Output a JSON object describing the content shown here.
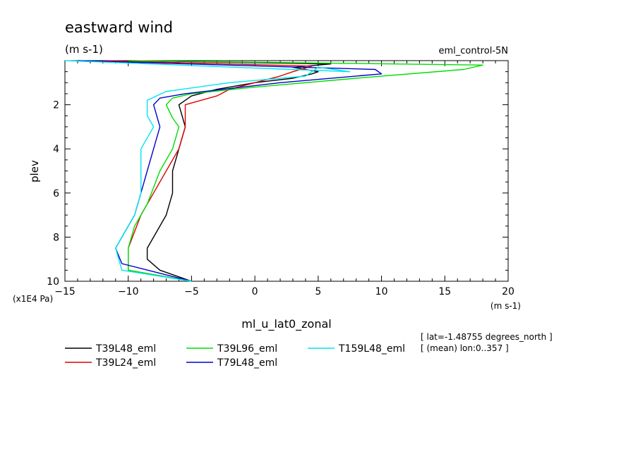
{
  "title": "eastward wind",
  "units_top": "(m s-1)",
  "dataset": "eml_control-5N",
  "ylabel": "plev",
  "yunits": "(x1E4 Pa)",
  "xunits": "(m s-1)",
  "xlabel": "ml_u_lat0_zonal",
  "info_lines": [
    "[ lat=-1.48755 degrees_north ]",
    "[ (mean) lon:0..357 ]"
  ],
  "chart_data": {
    "type": "line",
    "title": "eastward wind",
    "xlabel": "ml_u_lat0_zonal",
    "ylabel": "plev",
    "xlim": [
      -15,
      20
    ],
    "ylim": [
      0,
      10
    ],
    "y_inverted": true,
    "xticks": [
      -15,
      -10,
      -5,
      0,
      5,
      10,
      15,
      20
    ],
    "yticks": [
      2,
      4,
      6,
      8,
      10
    ],
    "legend_placement": "bottom",
    "series": [
      {
        "name": "T39L48_eml",
        "color": "#000000",
        "points": [
          [
            -10,
            0.0
          ],
          [
            6,
            0.15
          ],
          [
            3,
            0.3
          ],
          [
            5,
            0.5
          ],
          [
            4.5,
            0.6
          ],
          [
            3,
            0.8
          ],
          [
            0,
            1.0
          ],
          [
            -3,
            1.3
          ],
          [
            -5,
            1.6
          ],
          [
            -5.5,
            1.8
          ],
          [
            -6,
            2.0
          ],
          [
            -5.5,
            3.0
          ],
          [
            -6,
            4.0
          ],
          [
            -6.5,
            5.0
          ],
          [
            -6.5,
            6.0
          ],
          [
            -7,
            7.0
          ],
          [
            -8.5,
            8.5
          ],
          [
            -8.5,
            9.0
          ],
          [
            -7.5,
            9.5
          ],
          [
            -5,
            10.0
          ]
        ]
      },
      {
        "name": "T39L24_eml",
        "color": "#e00000",
        "points": [
          [
            -12,
            0.0
          ],
          [
            4.5,
            0.25
          ],
          [
            3,
            0.5
          ],
          [
            2,
            0.7
          ],
          [
            0,
            1.0
          ],
          [
            -2,
            1.3
          ],
          [
            -3,
            1.6
          ],
          [
            -5.5,
            2.0
          ],
          [
            -5.5,
            3.0
          ],
          [
            -6,
            4.0
          ],
          [
            -7,
            5.0
          ],
          [
            -8,
            6.0
          ],
          [
            -9,
            7.0
          ],
          [
            -10,
            8.5
          ],
          [
            -10,
            9.5
          ],
          [
            -5,
            10.0
          ]
        ]
      },
      {
        "name": "T39L96_eml",
        "color": "#00dd00",
        "points": [
          [
            -10,
            0.0
          ],
          [
            18,
            0.2
          ],
          [
            16.5,
            0.4
          ],
          [
            8,
            0.8
          ],
          [
            0,
            1.2
          ],
          [
            -5,
            1.5
          ],
          [
            -6.5,
            1.7
          ],
          [
            -7,
            2.0
          ],
          [
            -6.5,
            2.6
          ],
          [
            -6,
            3.0
          ],
          [
            -6.5,
            4.0
          ],
          [
            -7.5,
            5.0
          ],
          [
            -8.5,
            6.5
          ],
          [
            -9.5,
            7.5
          ],
          [
            -10,
            8.5
          ],
          [
            -10,
            9.5
          ],
          [
            -5,
            10.0
          ]
        ]
      },
      {
        "name": "T79L48_eml",
        "color": "#0000cc",
        "points": [
          [
            -14,
            0.0
          ],
          [
            9.5,
            0.4
          ],
          [
            10,
            0.6
          ],
          [
            2,
            1.0
          ],
          [
            -5.5,
            1.5
          ],
          [
            -7.5,
            1.7
          ],
          [
            -8,
            2.0
          ],
          [
            -7.5,
            3.0
          ],
          [
            -8,
            4.0
          ],
          [
            -8.5,
            5.0
          ],
          [
            -9,
            6.0
          ],
          [
            -9.5,
            7.0
          ],
          [
            -10.5,
            8.0
          ],
          [
            -11,
            8.5
          ],
          [
            -10.5,
            9.2
          ],
          [
            -5,
            10.0
          ]
        ]
      },
      {
        "name": "T159L48_eml",
        "color": "#00e5ee",
        "points": [
          [
            -15,
            0.0
          ],
          [
            7.5,
            0.5
          ],
          [
            5,
            0.3
          ],
          [
            4,
            0.7
          ],
          [
            -2,
            1.0
          ],
          [
            -7,
            1.4
          ],
          [
            -8.5,
            1.8
          ],
          [
            -8.5,
            2.5
          ],
          [
            -8,
            3.0
          ],
          [
            -9,
            4.0
          ],
          [
            -9,
            5.0
          ],
          [
            -9,
            6.0
          ],
          [
            -9.5,
            7.0
          ],
          [
            -10.5,
            8.0
          ],
          [
            -11,
            8.5
          ],
          [
            -10.5,
            9.5
          ],
          [
            -5,
            10.0
          ]
        ]
      }
    ]
  }
}
